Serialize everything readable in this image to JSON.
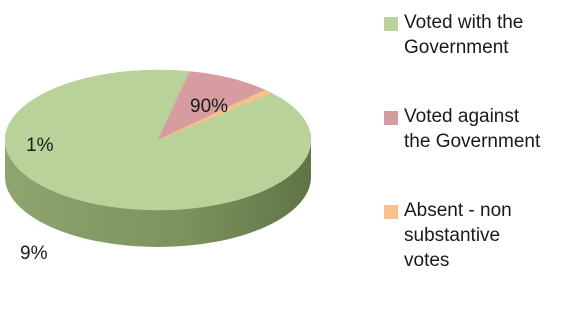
{
  "chart_data": {
    "type": "pie",
    "style": "3d",
    "title": "",
    "slices": [
      {
        "label": "Voted with the Government",
        "value": 90,
        "display": "90%",
        "color": "#b9d29a"
      },
      {
        "label": "Voted against the Government",
        "value": 9,
        "display": "9%",
        "color": "#d69c9f"
      },
      {
        "label": "Absent - non substantive votes",
        "value": 1,
        "display": "1%",
        "color": "#f6c18c"
      }
    ],
    "legend": {
      "placement": "right",
      "entries": [
        {
          "text": "Voted with the\nGovernment",
          "color": "#b9d29a"
        },
        {
          "text": "Voted against\nthe Government",
          "color": "#d69c9f"
        },
        {
          "text": "Absent - non\nsubstantive\nvotes",
          "color": "#f6c18c"
        }
      ]
    }
  }
}
